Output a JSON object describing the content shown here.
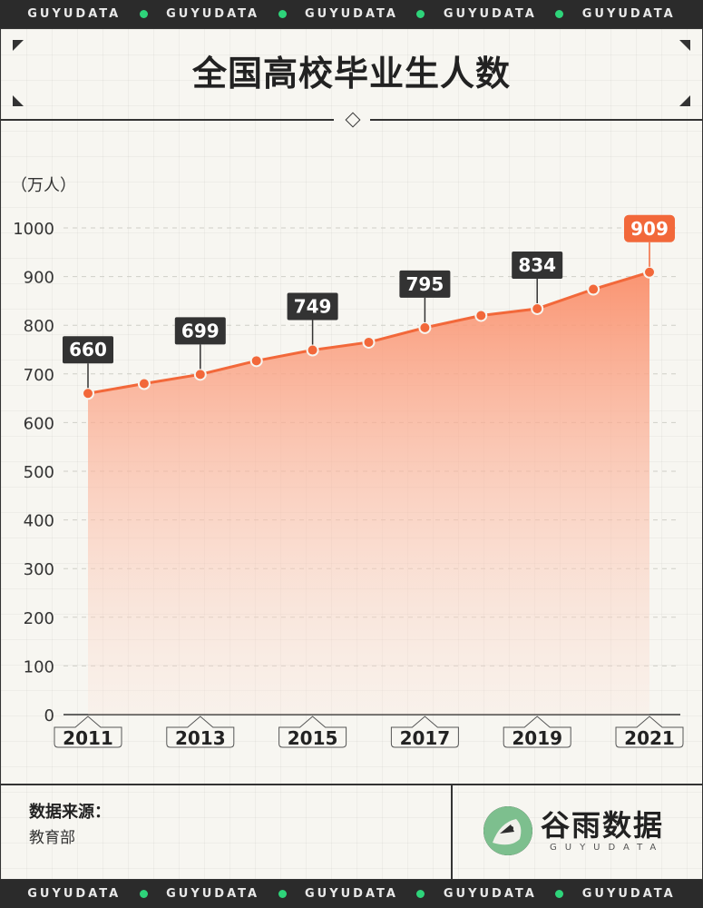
{
  "banner": {
    "word": "GUYUDATA"
  },
  "header": {
    "title": "全国高校毕业生人数"
  },
  "chart_data": {
    "type": "area",
    "title": "全国高校毕业生人数",
    "ylabel": "（万人）",
    "xlabel": "",
    "ylim": [
      0,
      1000
    ],
    "yticks": [
      0,
      100,
      200,
      300,
      400,
      500,
      600,
      700,
      800,
      900,
      1000
    ],
    "x": [
      2011,
      2012,
      2013,
      2014,
      2015,
      2016,
      2017,
      2018,
      2019,
      2020,
      2021
    ],
    "x_tick_labels": [
      "2011",
      "2013",
      "2015",
      "2017",
      "2019",
      "2021"
    ],
    "values": [
      660,
      680,
      699,
      727,
      749,
      765,
      795,
      820,
      834,
      874,
      909
    ],
    "labeled_points": [
      {
        "x": 2011,
        "label": "660"
      },
      {
        "x": 2013,
        "label": "699"
      },
      {
        "x": 2015,
        "label": "749"
      },
      {
        "x": 2017,
        "label": "795"
      },
      {
        "x": 2019,
        "label": "834"
      },
      {
        "x": 2021,
        "label": "909",
        "highlight": true
      }
    ],
    "grid": true,
    "colors": {
      "line": "#f2683a",
      "fill": "#fa8f6b",
      "label_bg": "#333333",
      "highlight_bg": "#f2683a"
    }
  },
  "footer": {
    "source_label": "数据来源：",
    "source_value": "教育部",
    "logo_name": "谷雨数据",
    "logo_sub": "GUYUDATA"
  }
}
